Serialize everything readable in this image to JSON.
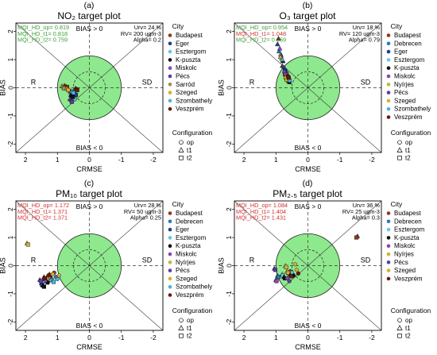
{
  "figure": {
    "y_axis_label": "BIAS",
    "x_axis_label": "CRMSE",
    "legend_city_title": "City",
    "legend_config_title": "Configuration",
    "config_labels": [
      "op",
      "t1",
      "t2"
    ],
    "quadrant_labels": {
      "top": "BIAS > 0",
      "bottom": "BIAS < 0",
      "left": "R",
      "right": "SD"
    },
    "colors": {
      "target_fill": "#8ee88e",
      "pass_text": "#3aa03a",
      "fail_text": "#d03030",
      "Budapest": "#8b3a1e",
      "Debrecen": "#2a7ab8",
      "Eger": "#1f3f8f",
      "Esztergom": "#62c8e8",
      "K-puszta": "#111111",
      "Miskolc": "#8a45b0",
      "Nyírjes": "#c8b43a",
      "Pécs": "#5a3fa0",
      "Sarród": "#9a8f55",
      "Szeged": "#d7b030",
      "Szombathely": "#4ab4d8",
      "Veszprém": "#6a1a10"
    }
  },
  "chart_data": [
    {
      "type": "scatter",
      "panel_letter": "(a)",
      "title": "NO₂ target plot",
      "mqi": [
        {
          "text": "MQI_HD_op= 0.819",
          "status": "pass"
        },
        {
          "text": "MQI_HD_t1= 0.818",
          "status": "pass"
        },
        {
          "text": "MQI_HD_t2= 0.759",
          "status": "pass"
        }
      ],
      "params": [
        "Urv= 24 %",
        "RV= 200 ugm-3",
        "Alpha= 0.2"
      ],
      "cities": [
        "Budapest",
        "Eger",
        "Esztergom",
        "K-puszta",
        "Miskolc",
        "Pécs",
        "Sarród",
        "Szeged",
        "Szombathely",
        "Veszprém"
      ],
      "xlim": [
        2.3,
        -2.3
      ],
      "ylim": [
        -2.3,
        2.3
      ],
      "x_ticks": [
        2,
        1,
        0,
        -1,
        -2
      ],
      "y_ticks": [
        -2,
        -1,
        0,
        1,
        2
      ],
      "points": [
        {
          "city": "Budapest",
          "config": "op",
          "x": 0.74,
          "y": 0.05
        },
        {
          "city": "Budapest",
          "config": "t1",
          "x": 0.78,
          "y": 0.08
        },
        {
          "city": "Budapest",
          "config": "t2",
          "x": 0.7,
          "y": 0.03
        },
        {
          "city": "Eger",
          "config": "op",
          "x": 0.45,
          "y": -0.22
        },
        {
          "city": "Eger",
          "config": "t1",
          "x": 0.48,
          "y": -0.18
        },
        {
          "city": "Eger",
          "config": "t2",
          "x": 0.42,
          "y": -0.25
        },
        {
          "city": "Esztergom",
          "config": "op",
          "x": 0.5,
          "y": -0.35
        },
        {
          "city": "Esztergom",
          "config": "t1",
          "x": 0.53,
          "y": -0.3
        },
        {
          "city": "Esztergom",
          "config": "t2",
          "x": 0.47,
          "y": -0.4
        },
        {
          "city": "K-puszta",
          "config": "op",
          "x": 0.55,
          "y": -0.28
        },
        {
          "city": "K-puszta",
          "config": "t1",
          "x": 0.58,
          "y": -0.25
        },
        {
          "city": "K-puszta",
          "config": "t2",
          "x": 0.52,
          "y": -0.33
        },
        {
          "city": "Miskolc",
          "config": "op",
          "x": 0.62,
          "y": -0.12
        },
        {
          "city": "Miskolc",
          "config": "t1",
          "x": 0.65,
          "y": -0.08
        },
        {
          "city": "Miskolc",
          "config": "t2",
          "x": 0.6,
          "y": -0.15
        },
        {
          "city": "Pécs",
          "config": "op",
          "x": 0.58,
          "y": -0.45
        },
        {
          "city": "Pécs",
          "config": "t1",
          "x": 0.61,
          "y": -0.4
        },
        {
          "city": "Pécs",
          "config": "t2",
          "x": 0.55,
          "y": -0.5
        },
        {
          "city": "Sarród",
          "config": "op",
          "x": 0.82,
          "y": 0.02
        },
        {
          "city": "Sarród",
          "config": "t1",
          "x": 0.86,
          "y": 0.06
        },
        {
          "city": "Sarród",
          "config": "t2",
          "x": 0.8,
          "y": -0.02
        },
        {
          "city": "Szeged",
          "config": "op",
          "x": 0.68,
          "y": -0.05
        },
        {
          "city": "Szeged",
          "config": "t1",
          "x": 0.71,
          "y": -0.02
        },
        {
          "city": "Szeged",
          "config": "t2",
          "x": 0.66,
          "y": -0.08
        },
        {
          "city": "Szombathely",
          "config": "op",
          "x": 0.52,
          "y": -0.15
        },
        {
          "city": "Szombathely",
          "config": "t1",
          "x": 0.55,
          "y": -0.12
        },
        {
          "city": "Szombathely",
          "config": "t2",
          "x": 0.5,
          "y": -0.18
        },
        {
          "city": "Veszprém",
          "config": "op",
          "x": 0.4,
          "y": -0.05
        },
        {
          "city": "Veszprém",
          "config": "t1",
          "x": 0.43,
          "y": -0.02
        },
        {
          "city": "Veszprém",
          "config": "t2",
          "x": 0.38,
          "y": -0.08
        }
      ]
    },
    {
      "type": "scatter",
      "panel_letter": "(b)",
      "title": "O₃ target plot",
      "mqi": [
        {
          "text": "MQI_HD_op= 0.954",
          "status": "pass"
        },
        {
          "text": "MQI_HD_t1= 1.048",
          "status": "fail"
        },
        {
          "text": "MQI_HD_t2= 0.959",
          "status": "pass"
        }
      ],
      "params": [
        "Urv= 18 %",
        "RV= 120 ugm-3",
        "Alpha= 0.79"
      ],
      "cities": [
        "Budapest",
        "Debrecen",
        "Eger",
        "Esztergom",
        "K-puszta",
        "Miskolc",
        "Nyírjes",
        "Pécs",
        "Szeged",
        "Szombathely",
        "Veszprém"
      ],
      "xlim": [
        2.3,
        -2.3
      ],
      "ylim": [
        -2.3,
        2.3
      ],
      "x_ticks": [
        2,
        1,
        0,
        -1,
        -2
      ],
      "y_ticks": [
        -2,
        -1,
        0,
        1,
        2
      ],
      "points": [
        {
          "city": "Budapest",
          "config": "op",
          "x": 0.72,
          "y": 0.45
        },
        {
          "city": "Budapest",
          "config": "t1",
          "x": 0.8,
          "y": 0.78
        },
        {
          "city": "Budapest",
          "config": "t2",
          "x": 0.68,
          "y": 0.35
        },
        {
          "city": "Debrecen",
          "config": "op",
          "x": 0.7,
          "y": 0.6
        },
        {
          "city": "Debrecen",
          "config": "t1",
          "x": 0.9,
          "y": 1.3
        },
        {
          "city": "Debrecen",
          "config": "t2",
          "x": 0.66,
          "y": 0.5
        },
        {
          "city": "Eger",
          "config": "op",
          "x": 0.76,
          "y": 0.72
        },
        {
          "city": "Eger",
          "config": "t1",
          "x": 0.95,
          "y": 1.55
        },
        {
          "city": "Eger",
          "config": "t2",
          "x": 0.72,
          "y": 0.62
        },
        {
          "city": "Esztergom",
          "config": "op",
          "x": 0.64,
          "y": 0.38
        },
        {
          "city": "Esztergom",
          "config": "t1",
          "x": 0.85,
          "y": 1.2
        },
        {
          "city": "Esztergom",
          "config": "t2",
          "x": 0.6,
          "y": 0.3
        },
        {
          "city": "K-puszta",
          "config": "op",
          "x": 0.62,
          "y": 0.25
        },
        {
          "city": "K-puszta",
          "config": "t1",
          "x": 0.78,
          "y": 0.95
        },
        {
          "city": "K-puszta",
          "config": "t2",
          "x": 0.58,
          "y": 0.2
        },
        {
          "city": "Miskolc",
          "config": "op",
          "x": 0.74,
          "y": 0.55
        },
        {
          "city": "Miskolc",
          "config": "t1",
          "x": 0.88,
          "y": 1.4
        },
        {
          "city": "Miskolc",
          "config": "t2",
          "x": 0.7,
          "y": 0.48
        },
        {
          "city": "Nyírjes",
          "config": "op",
          "x": 0.68,
          "y": 0.4
        },
        {
          "city": "Nyírjes",
          "config": "t1",
          "x": 0.82,
          "y": 1.05
        },
        {
          "city": "Nyírjes",
          "config": "t2",
          "x": 0.64,
          "y": 0.32
        },
        {
          "city": "Pécs",
          "config": "op",
          "x": 0.66,
          "y": 0.3
        },
        {
          "city": "Pécs",
          "config": "t1",
          "x": 0.84,
          "y": 1.15
        },
        {
          "city": "Pécs",
          "config": "t2",
          "x": 0.62,
          "y": 0.25
        },
        {
          "city": "Szeged",
          "config": "op",
          "x": 0.7,
          "y": 0.35
        },
        {
          "city": "Szeged",
          "config": "t1",
          "x": 0.86,
          "y": 1.1
        },
        {
          "city": "Szeged",
          "config": "t2",
          "x": 0.66,
          "y": 0.28
        },
        {
          "city": "Szombathely",
          "config": "op",
          "x": 0.6,
          "y": 0.32
        },
        {
          "city": "Szombathely",
          "config": "t1",
          "x": 0.8,
          "y": 1.0
        },
        {
          "city": "Szombathely",
          "config": "t2",
          "x": 0.57,
          "y": 0.26
        },
        {
          "city": "Veszprém",
          "config": "op",
          "x": 0.63,
          "y": 0.42
        },
        {
          "city": "Veszprém",
          "config": "t1",
          "x": 0.92,
          "y": 1.75
        },
        {
          "city": "Veszprém",
          "config": "t2",
          "x": 0.6,
          "y": 0.36
        }
      ]
    },
    {
      "type": "scatter",
      "panel_letter": "(c)",
      "title": "PM₁₀ target plot",
      "mqi": [
        {
          "text": "MQI_HD_op= 1.172",
          "status": "fail"
        },
        {
          "text": "MQI_HD_t1= 1.371",
          "status": "fail"
        },
        {
          "text": "MQI_HD_t2= 1.371",
          "status": "fail"
        }
      ],
      "params": [
        "Urv= 28 %",
        "RV= 50 ugm-3",
        "Alpha= 0.25"
      ],
      "cities": [
        "Budapest",
        "Debrecen",
        "Eger",
        "Esztergom",
        "K-puszta",
        "Miskolc",
        "Nyírjes",
        "Pécs",
        "Szeged",
        "Szombathely",
        "Veszprém"
      ],
      "xlim": [
        2.3,
        -2.3
      ],
      "ylim": [
        -2.3,
        2.3
      ],
      "x_ticks": [
        2,
        1,
        0,
        -1,
        -2
      ],
      "y_ticks": [
        -2,
        -1,
        0,
        1,
        2
      ],
      "points": [
        {
          "city": "Budapest",
          "config": "op",
          "x": 1.1,
          "y": -0.25
        },
        {
          "city": "Budapest",
          "config": "t1",
          "x": 1.25,
          "y": -0.3
        },
        {
          "city": "Budapest",
          "config": "t2",
          "x": 1.22,
          "y": -0.35
        },
        {
          "city": "Debrecen",
          "config": "op",
          "x": 1.05,
          "y": -0.4
        },
        {
          "city": "Debrecen",
          "config": "t1",
          "x": 1.2,
          "y": -0.45
        },
        {
          "city": "Debrecen",
          "config": "t2",
          "x": 1.18,
          "y": -0.5
        },
        {
          "city": "Eger",
          "config": "op",
          "x": 1.35,
          "y": -0.55
        },
        {
          "city": "Eger",
          "config": "t1",
          "x": 1.5,
          "y": -0.62
        },
        {
          "city": "Eger",
          "config": "t2",
          "x": 1.48,
          "y": -0.68
        },
        {
          "city": "Esztergom",
          "config": "op",
          "x": 1.2,
          "y": -0.5
        },
        {
          "city": "Esztergom",
          "config": "t1",
          "x": 1.35,
          "y": -0.55
        },
        {
          "city": "Esztergom",
          "config": "t2",
          "x": 1.32,
          "y": -0.6
        },
        {
          "city": "K-puszta",
          "config": "op",
          "x": 1.3,
          "y": -0.6
        },
        {
          "city": "K-puszta",
          "config": "t1",
          "x": 1.45,
          "y": -0.7
        },
        {
          "city": "K-puszta",
          "config": "t2",
          "x": 1.42,
          "y": -0.75
        },
        {
          "city": "Miskolc",
          "config": "op",
          "x": 1.25,
          "y": -0.42
        },
        {
          "city": "Miskolc",
          "config": "t1",
          "x": 1.4,
          "y": -0.48
        },
        {
          "city": "Miskolc",
          "config": "t2",
          "x": 1.38,
          "y": -0.52
        },
        {
          "city": "Nyírjes",
          "config": "op",
          "x": 0.95,
          "y": -0.35
        },
        {
          "city": "Nyírjes",
          "config": "t1",
          "x": 1.95,
          "y": 0.8
        },
        {
          "city": "Nyírjes",
          "config": "t2",
          "x": 1.92,
          "y": 0.75
        },
        {
          "city": "Pécs",
          "config": "op",
          "x": 1.4,
          "y": -0.45
        },
        {
          "city": "Pécs",
          "config": "t1",
          "x": 1.55,
          "y": -0.5
        },
        {
          "city": "Pécs",
          "config": "t2",
          "x": 1.52,
          "y": -0.55
        },
        {
          "city": "Szeged",
          "config": "op",
          "x": 1.15,
          "y": -0.3
        },
        {
          "city": "Szeged",
          "config": "t1",
          "x": 1.3,
          "y": -0.35
        },
        {
          "city": "Szeged",
          "config": "t2",
          "x": 1.28,
          "y": -0.4
        },
        {
          "city": "Szombathely",
          "config": "op",
          "x": 1.0,
          "y": -0.48
        },
        {
          "city": "Szombathely",
          "config": "t1",
          "x": 1.15,
          "y": -0.52
        },
        {
          "city": "Szombathely",
          "config": "t2",
          "x": 1.12,
          "y": -0.58
        },
        {
          "city": "Veszprém",
          "config": "op",
          "x": 1.28,
          "y": -0.35
        },
        {
          "city": "Veszprém",
          "config": "t1",
          "x": 1.42,
          "y": -0.4
        },
        {
          "city": "Veszprém",
          "config": "t2",
          "x": 1.4,
          "y": -0.45
        }
      ]
    },
    {
      "type": "scatter",
      "panel_letter": "(d)",
      "title": "PM₂.₅ target plot",
      "mqi": [
        {
          "text": "MQI_HD_op= 1.084",
          "status": "fail"
        },
        {
          "text": "MQI_HD_t1= 1.404",
          "status": "fail"
        },
        {
          "text": "MQI_HD_t2= 1.431",
          "status": "fail"
        }
      ],
      "params": [
        "Urv= 36 %",
        "RV= 25 ugm-3",
        "Alpha= 0.3"
      ],
      "cities": [
        "Budapest",
        "Debrecen",
        "Esztergom",
        "K-puszta",
        "Miskolc",
        "Nyírjes",
        "Pécs",
        "Szeged",
        "Veszprém"
      ],
      "xlim": [
        2.3,
        -2.3
      ],
      "ylim": [
        -2.3,
        2.3
      ],
      "x_ticks": [
        2,
        1,
        0,
        -1,
        -2
      ],
      "y_ticks": [
        -2,
        -1,
        0,
        1,
        2
      ],
      "points": [
        {
          "city": "Budapest",
          "config": "op",
          "x": 0.55,
          "y": -0.2
        },
        {
          "city": "Budapest",
          "config": "t1",
          "x": -1.55,
          "y": 1.05
        },
        {
          "city": "Budapest",
          "config": "t2",
          "x": -1.52,
          "y": 1.0
        },
        {
          "city": "Debrecen",
          "config": "op",
          "x": 0.6,
          "y": -0.3
        },
        {
          "city": "Debrecen",
          "config": "t1",
          "x": 0.95,
          "y": -0.35
        },
        {
          "city": "Debrecen",
          "config": "t2",
          "x": 0.92,
          "y": -0.4
        },
        {
          "city": "Esztergom",
          "config": "op",
          "x": 0.5,
          "y": -0.25
        },
        {
          "city": "Esztergom",
          "config": "t1",
          "x": 0.8,
          "y": -0.3
        },
        {
          "city": "Esztergom",
          "config": "t2",
          "x": 0.78,
          "y": -0.35
        },
        {
          "city": "K-puszta",
          "config": "op",
          "x": 0.45,
          "y": -0.35
        },
        {
          "city": "K-puszta",
          "config": "t1",
          "x": 0.75,
          "y": -0.4
        },
        {
          "city": "K-puszta",
          "config": "t2",
          "x": 0.72,
          "y": -0.45
        },
        {
          "city": "Miskolc",
          "config": "op",
          "x": 0.65,
          "y": -0.45
        },
        {
          "city": "Miskolc",
          "config": "t1",
          "x": 1.0,
          "y": -0.5
        },
        {
          "city": "Miskolc",
          "config": "t2",
          "x": 0.98,
          "y": -0.55
        },
        {
          "city": "Nyírjes",
          "config": "op",
          "x": 0.4,
          "y": 0.05
        },
        {
          "city": "Nyírjes",
          "config": "t1",
          "x": 0.7,
          "y": 0.0
        },
        {
          "city": "Nyírjes",
          "config": "t2",
          "x": 0.68,
          "y": -0.05
        },
        {
          "city": "Pécs",
          "config": "op",
          "x": 0.58,
          "y": -0.55
        },
        {
          "city": "Pécs",
          "config": "t1",
          "x": 1.05,
          "y": -0.1
        },
        {
          "city": "Pécs",
          "config": "t2",
          "x": 1.02,
          "y": -0.15
        },
        {
          "city": "Szeged",
          "config": "op",
          "x": 0.35,
          "y": -0.15
        },
        {
          "city": "Szeged",
          "config": "t1",
          "x": 0.65,
          "y": -0.2
        },
        {
          "city": "Szeged",
          "config": "t2",
          "x": 0.62,
          "y": -0.25
        },
        {
          "city": "Veszprém",
          "config": "op",
          "x": 0.3,
          "y": -0.28
        },
        {
          "city": "Veszprém",
          "config": "t1",
          "x": 0.55,
          "y": -0.32
        },
        {
          "city": "Veszprém",
          "config": "t2",
          "x": 0.52,
          "y": -0.38
        }
      ]
    }
  ]
}
